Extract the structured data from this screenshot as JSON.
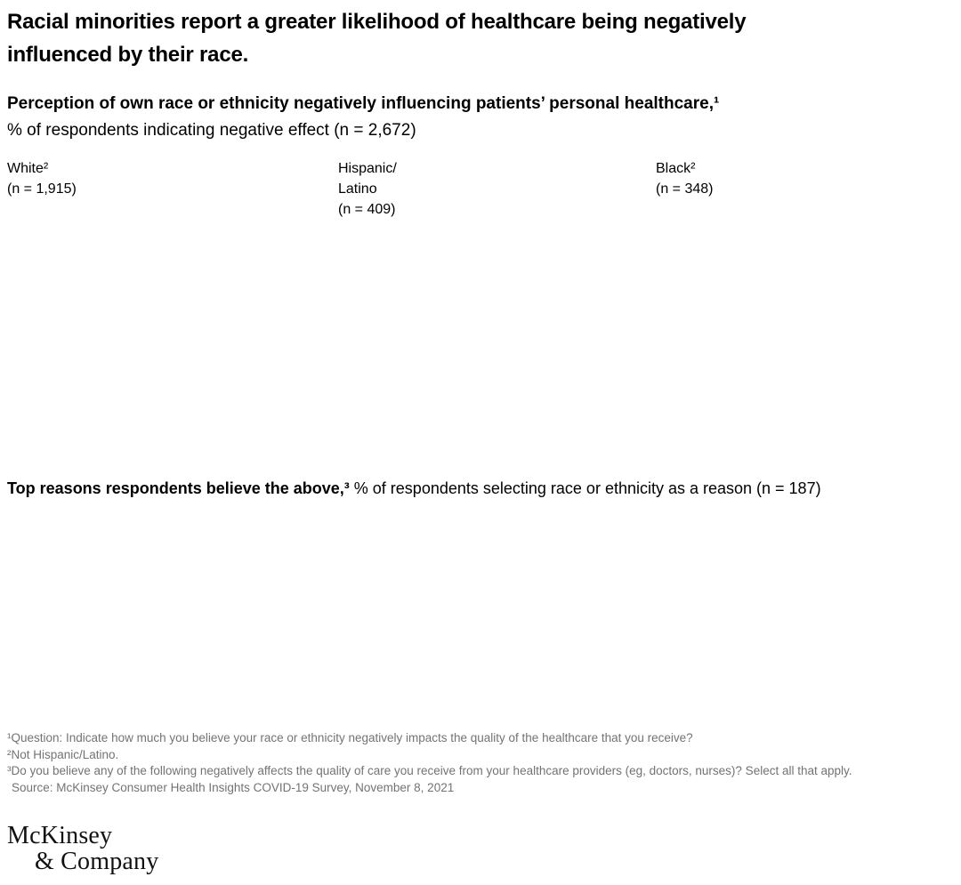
{
  "header": {
    "title": "Racial minorities report a greater likelihood of healthcare being negatively\ninfluenced by their race."
  },
  "perception_section": {
    "heading_bold": "Perception of own race or ethnicity negatively influencing patients’ personal healthcare,¹",
    "heading_regular": "% of respondents indicating negative effect (n = 2,672)",
    "groups": [
      {
        "name": "White²",
        "n_label": "(n = 1,915)"
      },
      {
        "name": "Hispanic/\nLatino",
        "n_label": "(n = 409)"
      },
      {
        "name": "Black²",
        "n_label": "(n = 348)"
      }
    ]
  },
  "reasons_section": {
    "heading_bold": "Top reasons respondents believe the above,³",
    "heading_regular": " % of respondents selecting race or ethnicity as a reason (n = 187)"
  },
  "footnotes": [
    "¹Question: Indicate how much you believe your race or ethnicity negatively impacts the quality of the healthcare that you receive?",
    "²Not Hispanic/Latino.",
    "³Do you believe any of the following negatively affects the quality of care you receive from your healthcare providers (eg, doctors, nurses)? Select all that apply.",
    "Source: McKinsey Consumer Health Insights COVID-19 Survey, November 8, 2021"
  ],
  "logo": {
    "line1": "McKinsey",
    "line2": "& Company"
  },
  "colors": {
    "background": "#ffffff",
    "text": "#000000",
    "footnote": "#737373"
  },
  "chart_data": [
    {
      "type": "donut",
      "title": "Perception of own race or ethnicity negatively influencing patients’ personal healthcare",
      "subtitle": "% of respondents indicating negative effect (n = 2,672)",
      "categories": [
        "White (n = 1,915)",
        "Hispanic/Latino (n = 409)",
        "Black (n = 348)"
      ],
      "values": [],
      "note": "chart graphics area is blank in the screenshot; no data values are rendered"
    },
    {
      "type": "bar",
      "title": "Top reasons respondents believe the above",
      "subtitle": "% of respondents selecting race or ethnicity as a reason (n = 187)",
      "categories": [],
      "values": [],
      "note": "chart graphics area is blank in the screenshot; no data values are rendered"
    }
  ]
}
